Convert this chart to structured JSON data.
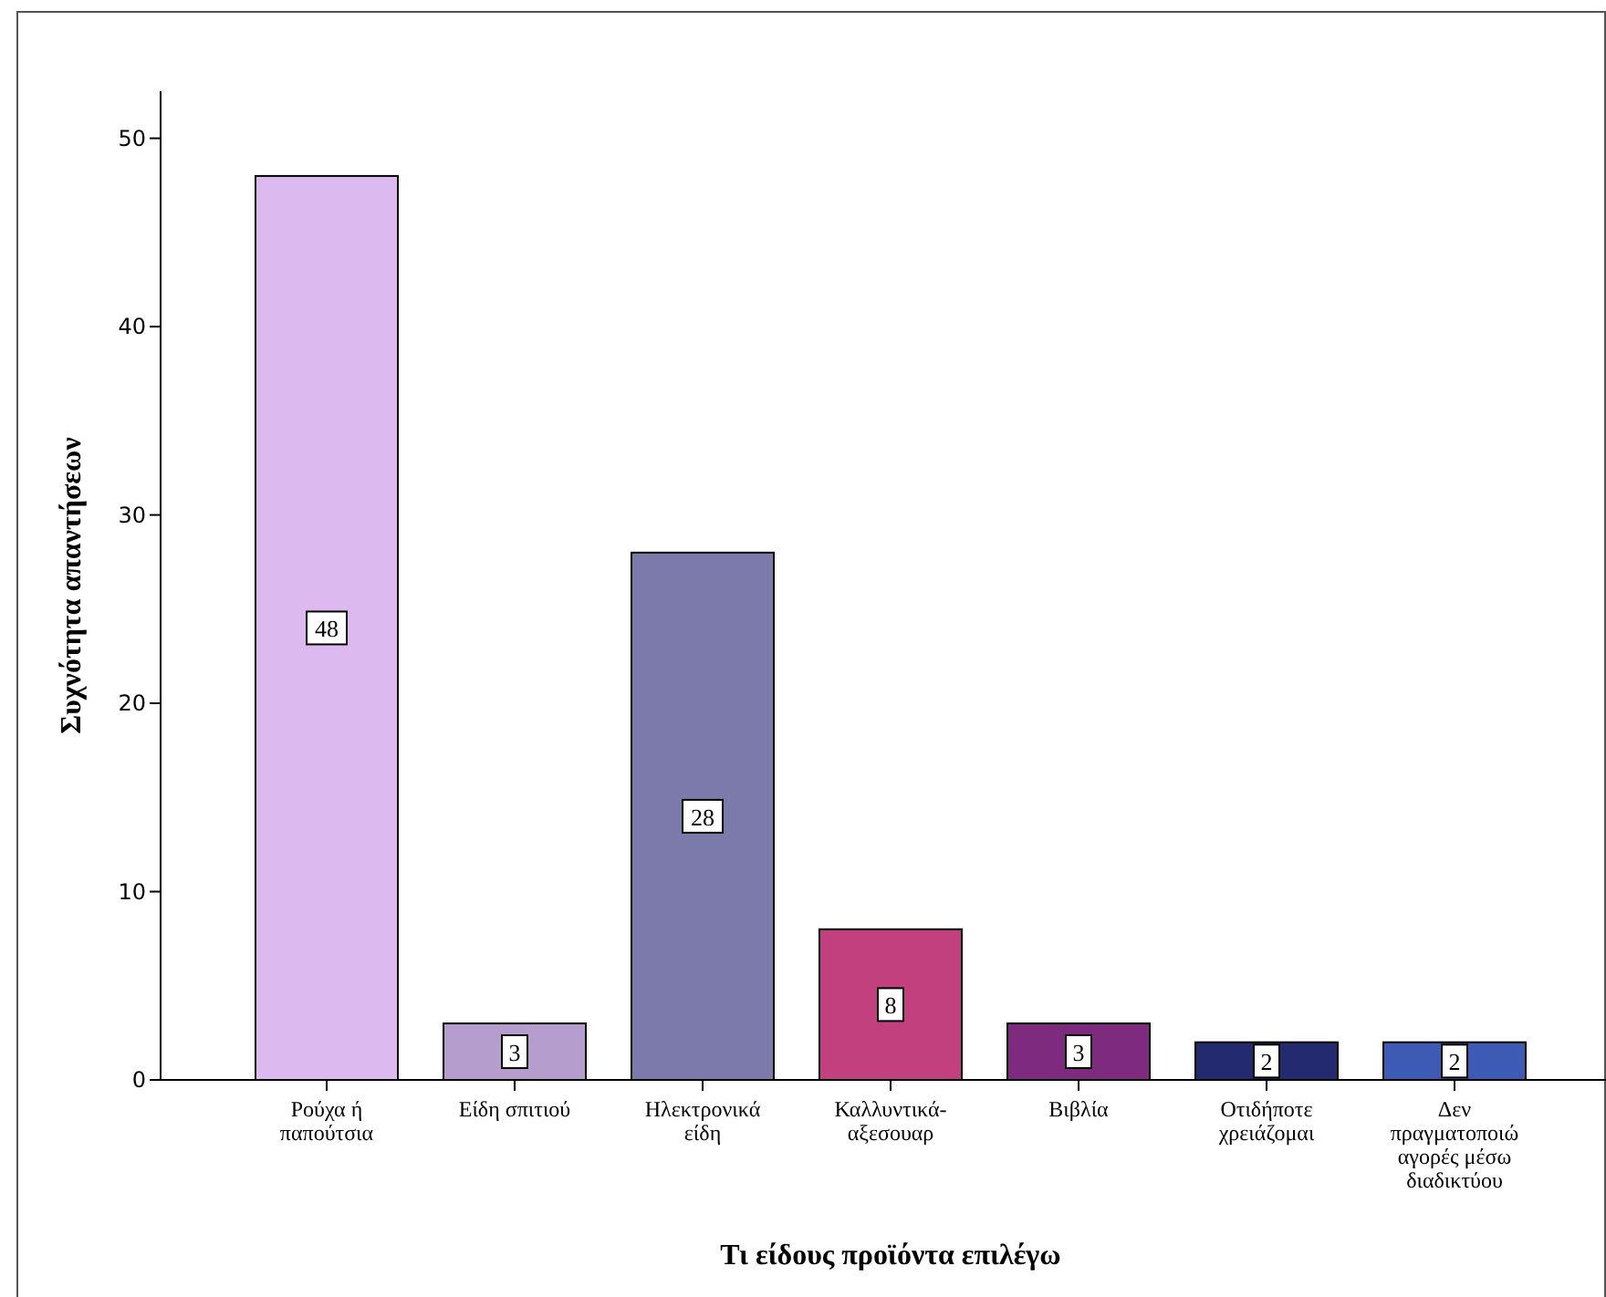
{
  "chart_data": {
    "type": "bar",
    "xlabel": "Τι είδους προϊόντα επιλέγω",
    "ylabel": "Συχνότητα απαντήσεων",
    "categories": [
      "Ρούχα ή παπούτσια",
      "Είδη σπιτιού",
      "Ηλεκτρονικά είδη",
      "Καλλυντικά-αξεσουαρ",
      "Βιβλία",
      "Οτιδήποτε χρειάζομαι",
      "Δεν πραγματοποιώ αγορές μέσω διαδικτύου"
    ],
    "values": [
      48,
      3,
      28,
      8,
      3,
      2,
      2
    ],
    "colors": [
      "#dcbaf0",
      "#b59dce",
      "#7b7aab",
      "#c3407f",
      "#7e2a7f",
      "#232a6f",
      "#3d5bb4"
    ],
    "ylim": [
      0,
      52.5
    ],
    "yticks": [
      0,
      10,
      20,
      30,
      40,
      50
    ],
    "data_labels": true
  }
}
